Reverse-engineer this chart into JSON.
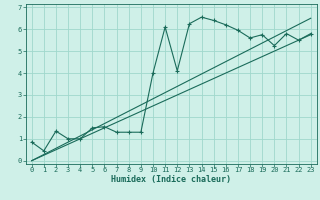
{
  "xlabel": "Humidex (Indice chaleur)",
  "ylabel": "",
  "bg_color": "#cff0e8",
  "grid_color": "#a0d8cc",
  "line_color": "#1a6b5a",
  "xlim": [
    -0.5,
    23.5
  ],
  "ylim": [
    -0.15,
    7.15
  ],
  "xticks": [
    0,
    1,
    2,
    3,
    4,
    5,
    6,
    7,
    8,
    9,
    10,
    11,
    12,
    13,
    14,
    15,
    16,
    17,
    18,
    19,
    20,
    21,
    22,
    23
  ],
  "yticks": [
    0,
    1,
    2,
    3,
    4,
    5,
    6,
    7
  ],
  "curve_x": [
    0,
    1,
    2,
    3,
    4,
    5,
    6,
    7,
    8,
    9,
    10,
    11,
    12,
    13,
    14,
    15,
    16,
    17,
    18,
    19,
    20,
    21,
    22,
    23
  ],
  "curve_y": [
    0.85,
    0.45,
    1.35,
    1.0,
    1.0,
    1.5,
    1.55,
    1.3,
    1.3,
    1.3,
    4.0,
    6.1,
    4.1,
    6.25,
    6.55,
    6.4,
    6.2,
    5.95,
    5.6,
    5.75,
    5.25,
    5.8,
    5.5,
    5.8
  ],
  "line1_x": [
    0,
    23
  ],
  "line1_y": [
    0.0,
    5.75
  ],
  "line2_x": [
    0,
    23
  ],
  "line2_y": [
    0.0,
    6.5
  ],
  "tick_fontsize": 5.0,
  "xlabel_fontsize": 6.0,
  "linewidth": 0.8,
  "markersize": 3.0
}
